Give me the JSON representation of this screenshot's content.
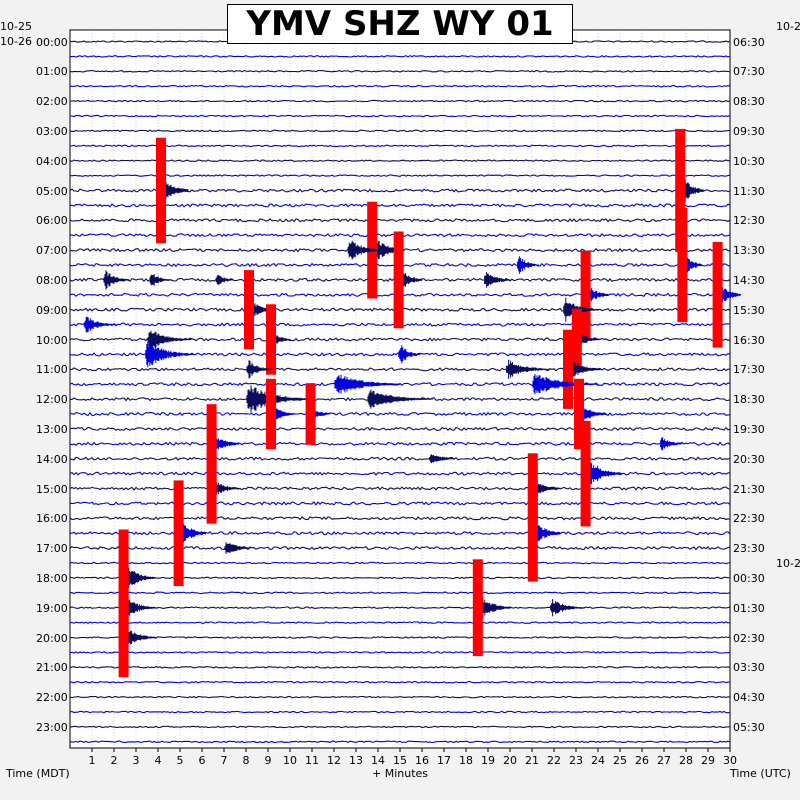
{
  "chart_data": {
    "type": "helicorder",
    "title": "YMV SHZ WY 01",
    "xlabel": "+ Minutes",
    "left_axis_label": "Time (MDT)",
    "right_axis_label": "Time (UTC)",
    "x_ticks": [
      "1",
      "2",
      "3",
      "4",
      "5",
      "6",
      "7",
      "8",
      "9",
      "10",
      "11",
      "12",
      "13",
      "14",
      "15",
      "16",
      "17",
      "18",
      "19",
      "20",
      "21",
      "22",
      "23",
      "24",
      "25",
      "26",
      "27",
      "28",
      "29",
      "30"
    ],
    "xlim": [
      0,
      30
    ],
    "minutes_per_line": 30,
    "left_dates": [
      "10-25",
      "10-26"
    ],
    "right_date_labels": [
      "10-2",
      "10-2"
    ],
    "left_hour_labels": [
      "00:00",
      "01:00",
      "02:00",
      "03:00",
      "04:00",
      "05:00",
      "06:00",
      "07:00",
      "08:00",
      "09:00",
      "10:00",
      "11:00",
      "12:00",
      "13:00",
      "14:00",
      "15:00",
      "16:00",
      "17:00",
      "18:00",
      "19:00",
      "20:00",
      "21:00",
      "22:00",
      "23:00"
    ],
    "right_hour_labels": [
      "06:30",
      "07:30",
      "08:30",
      "09:30",
      "10:30",
      "11:30",
      "12:30",
      "13:30",
      "14:30",
      "15:30",
      "16:30",
      "17:30",
      "18:30",
      "19:30",
      "20:30",
      "21:30",
      "22:30",
      "23:30",
      "00:30",
      "01:30",
      "02:30",
      "03:30",
      "04:30",
      "05:30"
    ],
    "line_colors": [
      "#0c0c5c",
      "#0000dd"
    ],
    "clip_color": "#ff0000",
    "bursts": [
      {
        "row": 10,
        "minute": 4.0,
        "amp": 24,
        "dur": 1.4,
        "clip": true
      },
      {
        "row": 10,
        "minute": 27.6,
        "amp": 28,
        "dur": 1.2,
        "clip": true
      },
      {
        "row": 14,
        "minute": 13.6,
        "amp": 22,
        "dur": 1.6,
        "clip": true
      },
      {
        "row": 14,
        "minute": 12.6,
        "amp": 14,
        "dur": 1.8,
        "clip": false
      },
      {
        "row": 15,
        "minute": 20.3,
        "amp": 14,
        "dur": 1.0,
        "clip": false
      },
      {
        "row": 15,
        "minute": 27.7,
        "amp": 26,
        "dur": 1.0,
        "clip": true
      },
      {
        "row": 16,
        "minute": 1.5,
        "amp": 14,
        "dur": 1.2,
        "clip": false
      },
      {
        "row": 16,
        "minute": 3.6,
        "amp": 12,
        "dur": 1.0,
        "clip": false
      },
      {
        "row": 16,
        "minute": 6.6,
        "amp": 12,
        "dur": 0.8,
        "clip": false
      },
      {
        "row": 16,
        "minute": 14.8,
        "amp": 22,
        "dur": 1.2,
        "clip": true
      },
      {
        "row": 16,
        "minute": 18.8,
        "amp": 14,
        "dur": 1.2,
        "clip": false
      },
      {
        "row": 17,
        "minute": 23.3,
        "amp": 20,
        "dur": 1.2,
        "clip": true
      },
      {
        "row": 17,
        "minute": 29.3,
        "amp": 24,
        "dur": 1.2,
        "clip": true
      },
      {
        "row": 18,
        "minute": 8.0,
        "amp": 18,
        "dur": 1.3,
        "clip": true
      },
      {
        "row": 18,
        "minute": 22.4,
        "amp": 16,
        "dur": 1.6,
        "clip": false
      },
      {
        "row": 19,
        "minute": 0.6,
        "amp": 12,
        "dur": 1.5,
        "clip": false
      },
      {
        "row": 20,
        "minute": 3.5,
        "amp": 14,
        "dur": 2.0,
        "clip": false
      },
      {
        "row": 20,
        "minute": 9.0,
        "amp": 16,
        "dur": 1.0,
        "clip": true
      },
      {
        "row": 20,
        "minute": 22.9,
        "amp": 14,
        "dur": 1.2,
        "clip": true
      },
      {
        "row": 21,
        "minute": 3.4,
        "amp": 18,
        "dur": 2.2,
        "clip": false
      },
      {
        "row": 21,
        "minute": 14.9,
        "amp": 16,
        "dur": 1.0,
        "clip": false
      },
      {
        "row": 22,
        "minute": 8.0,
        "amp": 14,
        "dur": 1.2,
        "clip": false
      },
      {
        "row": 22,
        "minute": 19.8,
        "amp": 12,
        "dur": 2.0,
        "clip": false
      },
      {
        "row": 22,
        "minute": 22.5,
        "amp": 18,
        "dur": 1.6,
        "clip": true
      },
      {
        "row": 23,
        "minute": 12.0,
        "amp": 14,
        "dur": 3.0,
        "clip": false
      },
      {
        "row": 23,
        "minute": 21.0,
        "amp": 14,
        "dur": 3.0,
        "clip": false
      },
      {
        "row": 24,
        "minute": 8.0,
        "amp": 18,
        "dur": 3.0,
        "clip": false
      },
      {
        "row": 24,
        "minute": 13.5,
        "amp": 12,
        "dur": 3.0,
        "clip": false
      },
      {
        "row": 25,
        "minute": 9.0,
        "amp": 16,
        "dur": 1.2,
        "clip": true
      },
      {
        "row": 25,
        "minute": 10.8,
        "amp": 14,
        "dur": 1.0,
        "clip": true
      },
      {
        "row": 25,
        "minute": 23.0,
        "amp": 16,
        "dur": 1.4,
        "clip": true
      },
      {
        "row": 27,
        "minute": 6.3,
        "amp": 18,
        "dur": 1.4,
        "clip": true
      },
      {
        "row": 27,
        "minute": 26.8,
        "amp": 12,
        "dur": 1.0,
        "clip": false
      },
      {
        "row": 28,
        "minute": 16.3,
        "amp": 10,
        "dur": 1.2,
        "clip": false
      },
      {
        "row": 29,
        "minute": 23.3,
        "amp": 24,
        "dur": 1.8,
        "clip": true
      },
      {
        "row": 30,
        "minute": 6.3,
        "amp": 16,
        "dur": 1.4,
        "clip": true
      },
      {
        "row": 30,
        "minute": 20.9,
        "amp": 16,
        "dur": 1.4,
        "clip": true
      },
      {
        "row": 33,
        "minute": 4.8,
        "amp": 24,
        "dur": 1.4,
        "clip": true
      },
      {
        "row": 33,
        "minute": 20.9,
        "amp": 22,
        "dur": 1.4,
        "clip": true
      },
      {
        "row": 34,
        "minute": 7.0,
        "amp": 12,
        "dur": 1.2,
        "clip": false
      },
      {
        "row": 36,
        "minute": 2.3,
        "amp": 22,
        "dur": 1.6,
        "clip": true
      },
      {
        "row": 38,
        "minute": 2.3,
        "amp": 18,
        "dur": 1.6,
        "clip": true
      },
      {
        "row": 38,
        "minute": 18.4,
        "amp": 22,
        "dur": 1.6,
        "clip": true
      },
      {
        "row": 38,
        "minute": 21.8,
        "amp": 12,
        "dur": 1.6,
        "clip": false
      },
      {
        "row": 40,
        "minute": 2.3,
        "amp": 18,
        "dur": 1.6,
        "clip": true
      }
    ]
  }
}
